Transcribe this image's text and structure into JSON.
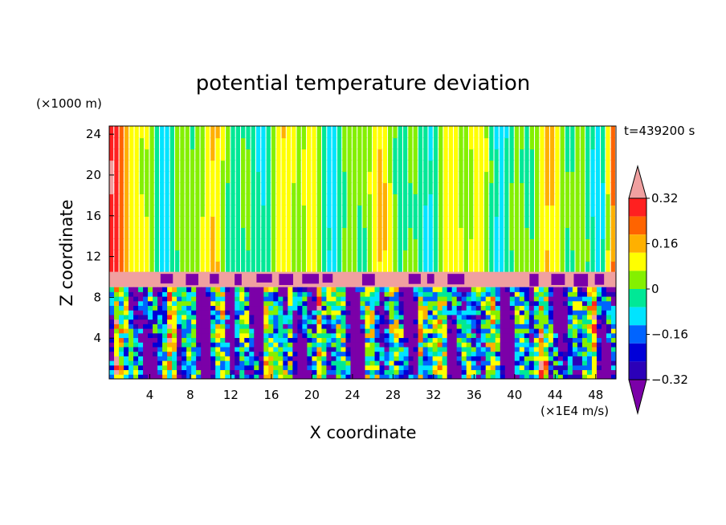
{
  "chart_data": {
    "type": "heatmap",
    "title": "potential temperature deviation",
    "xlabel": "X coordinate",
    "ylabel": "Z coordinate",
    "x_unit": "(×1E4 m/s)",
    "y_unit": "(×1000 m)",
    "time_label": "t=439200 s",
    "xlim": [
      0,
      50
    ],
    "ylim": [
      0,
      24.8
    ],
    "x_ticks": [
      4,
      8,
      12,
      16,
      20,
      24,
      28,
      32,
      36,
      40,
      44,
      48
    ],
    "y_ticks": [
      4,
      8,
      12,
      16,
      20,
      24
    ],
    "colorbar": {
      "levels": [
        -0.4,
        -0.32,
        -0.24,
        -0.16,
        -0.08,
        0,
        0.08,
        0.16,
        0.24,
        0.32,
        0.4
      ],
      "tick_labels": [
        "0.32",
        "0.16",
        "0",
        "−0.16",
        "−0.32"
      ],
      "tick_values": [
        0.32,
        0.16,
        0,
        -0.16,
        -0.32
      ],
      "colors_low_to_high": [
        "#7b00a8",
        "#2b00b8",
        "#0000d8",
        "#0064ff",
        "#00e4ff",
        "#00e896",
        "#84f000",
        "#ffff00",
        "#ffb000",
        "#ff6400",
        "#ff2020",
        "#f0a0a0"
      ],
      "extend": "both"
    },
    "layers": [
      {
        "z_range": [
          10.5,
          24.8
        ],
        "pattern": "smooth vertical bands",
        "dominant": [
          0,
          0.08
        ]
      },
      {
        "z_range": [
          9.0,
          10.5
        ],
        "pattern": "positive layer (tropopause)",
        "dominant": [
          0.4
        ]
      },
      {
        "z_range": [
          0,
          9.0
        ],
        "pattern": "turbulent convective columns",
        "dominant": [
          -0.4,
          0.32
        ]
      }
    ]
  }
}
